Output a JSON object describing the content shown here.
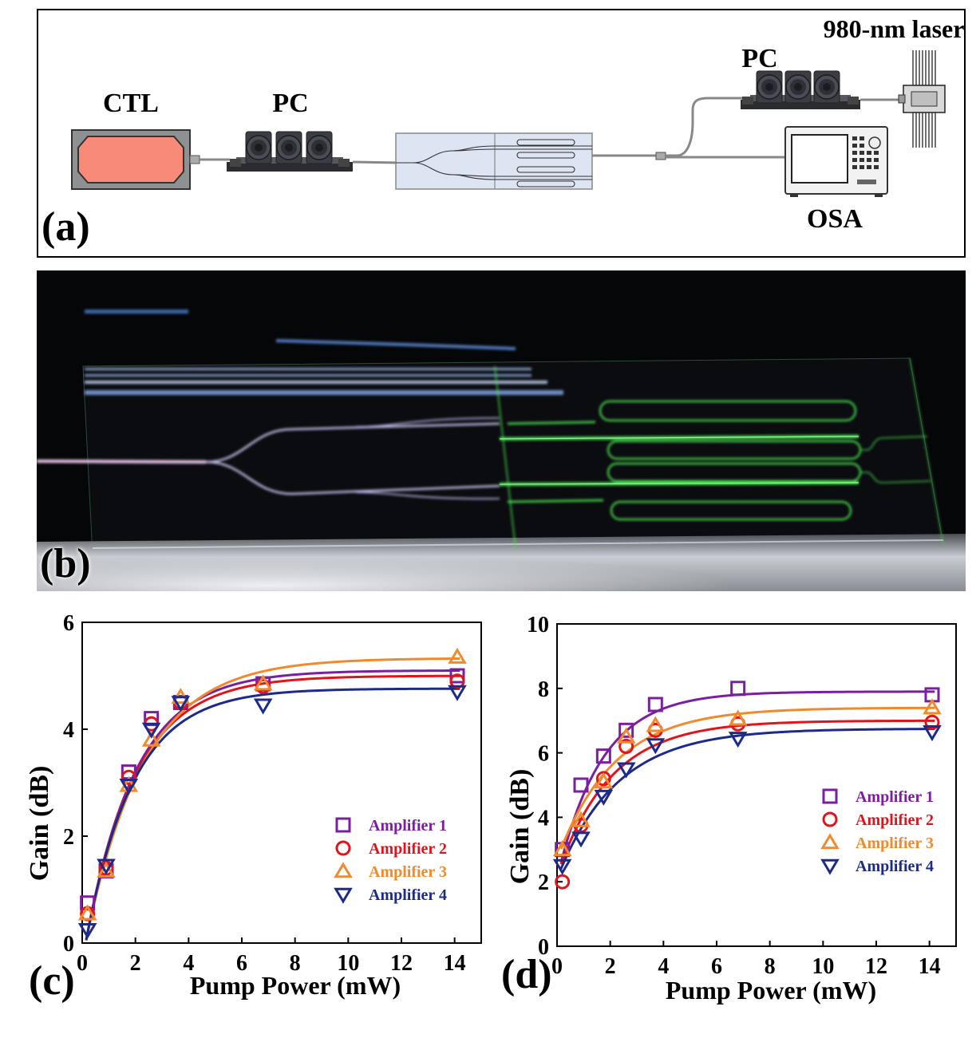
{
  "panel_a": {
    "label": "(a)",
    "components": {
      "ctl": "CTL",
      "pc_left": "PC",
      "pc_right": "PC",
      "laser": "980-nm laser",
      "osa": "OSA"
    }
  },
  "panel_b": {
    "label": "(b)"
  },
  "chart_data": [
    {
      "panel_label": "(c)",
      "type": "scatter",
      "xlabel": "Pump Power (mW)",
      "ylabel": "Gain (dB)",
      "xlim": [
        0,
        15
      ],
      "ylim": [
        0,
        6
      ],
      "xticks": [
        0,
        2,
        4,
        6,
        8,
        10,
        12,
        14
      ],
      "yticks": [
        0,
        2,
        4,
        6
      ],
      "grid": false,
      "legend_position": "bottom-right",
      "series": [
        {
          "name": "Amplifier 1",
          "marker": "square",
          "color": "#7a1fa0",
          "x": [
            0.2,
            0.9,
            1.75,
            2.6,
            3.7,
            6.8,
            14.1
          ],
          "y": [
            0.75,
            1.35,
            3.2,
            4.2,
            4.5,
            4.85,
            5.0
          ],
          "fit": {
            "a": 5.1,
            "k": 0.53,
            "x0": 0.13
          }
        },
        {
          "name": "Amplifier 2",
          "marker": "circle",
          "color": "#e0141a",
          "x": [
            0.2,
            0.9,
            1.75,
            2.6,
            3.7,
            6.8,
            14.1
          ],
          "y": [
            0.55,
            1.4,
            3.1,
            4.1,
            4.5,
            4.8,
            4.9
          ],
          "fit": {
            "a": 5.0,
            "k": 0.53,
            "x0": 0.13
          }
        },
        {
          "name": "Amplifier 3",
          "marker": "triangle-up",
          "color": "#f08a2c",
          "x": [
            0.2,
            0.9,
            1.75,
            2.6,
            3.7,
            6.8,
            14.1
          ],
          "y": [
            0.55,
            1.35,
            2.95,
            3.8,
            4.6,
            4.85,
            5.35
          ],
          "fit": {
            "a": 5.33,
            "k": 0.46,
            "x0": 0.13
          }
        },
        {
          "name": "Amplifier 4",
          "marker": "triangle-down",
          "color": "#1c2a8a",
          "x": [
            0.2,
            0.9,
            1.75,
            2.6,
            3.7,
            6.8,
            14.1
          ],
          "y": [
            0.25,
            1.45,
            2.95,
            4.0,
            4.5,
            4.45,
            4.7
          ],
          "fit": {
            "a": 4.76,
            "k": 0.56,
            "x0": 0.13
          }
        }
      ]
    },
    {
      "panel_label": "(d)",
      "type": "scatter",
      "xlabel": "Pump Power (mW)",
      "ylabel": "Gain (dB)",
      "xlim": [
        0,
        15
      ],
      "ylim": [
        0,
        10
      ],
      "xticks": [
        0,
        2,
        4,
        6,
        8,
        10,
        12,
        14
      ],
      "yticks": [
        0,
        2,
        4,
        6,
        8,
        10
      ],
      "grid": false,
      "legend_position": "right",
      "series": [
        {
          "name": "Amplifier 1",
          "marker": "square",
          "color": "#7a1fa0",
          "x": [
            0.2,
            0.9,
            1.75,
            2.6,
            3.7,
            6.8,
            14.1
          ],
          "y": [
            3.0,
            5.0,
            5.9,
            6.7,
            7.5,
            8.0,
            7.8
          ],
          "fit": {
            "b": 2.1,
            "a": 7.9,
            "k": 0.6
          }
        },
        {
          "name": "Amplifier 2",
          "marker": "circle",
          "color": "#e0141a",
          "x": [
            0.2,
            0.9,
            1.75,
            2.6,
            3.7,
            6.8,
            14.1
          ],
          "y": [
            2.0,
            3.75,
            5.2,
            6.2,
            6.7,
            6.9,
            6.95
          ],
          "fit": {
            "b": 2.2,
            "a": 7.0,
            "k": 0.5
          }
        },
        {
          "name": "Amplifier 3",
          "marker": "triangle-up",
          "color": "#f08a2c",
          "x": [
            0.2,
            0.9,
            1.75,
            2.6,
            3.7,
            6.8,
            14.1
          ],
          "y": [
            3.0,
            3.9,
            5.1,
            6.5,
            6.85,
            7.05,
            7.4
          ],
          "fit": {
            "b": 2.7,
            "a": 7.4,
            "k": 0.47
          }
        },
        {
          "name": "Amplifier 4",
          "marker": "triangle-down",
          "color": "#1c2a8a",
          "x": [
            0.2,
            0.9,
            1.75,
            2.6,
            3.7,
            6.8,
            14.1
          ],
          "y": [
            2.5,
            3.35,
            4.65,
            5.5,
            6.25,
            6.45,
            6.65
          ],
          "fit": {
            "b": 2.1,
            "a": 6.75,
            "k": 0.45
          }
        }
      ]
    }
  ]
}
